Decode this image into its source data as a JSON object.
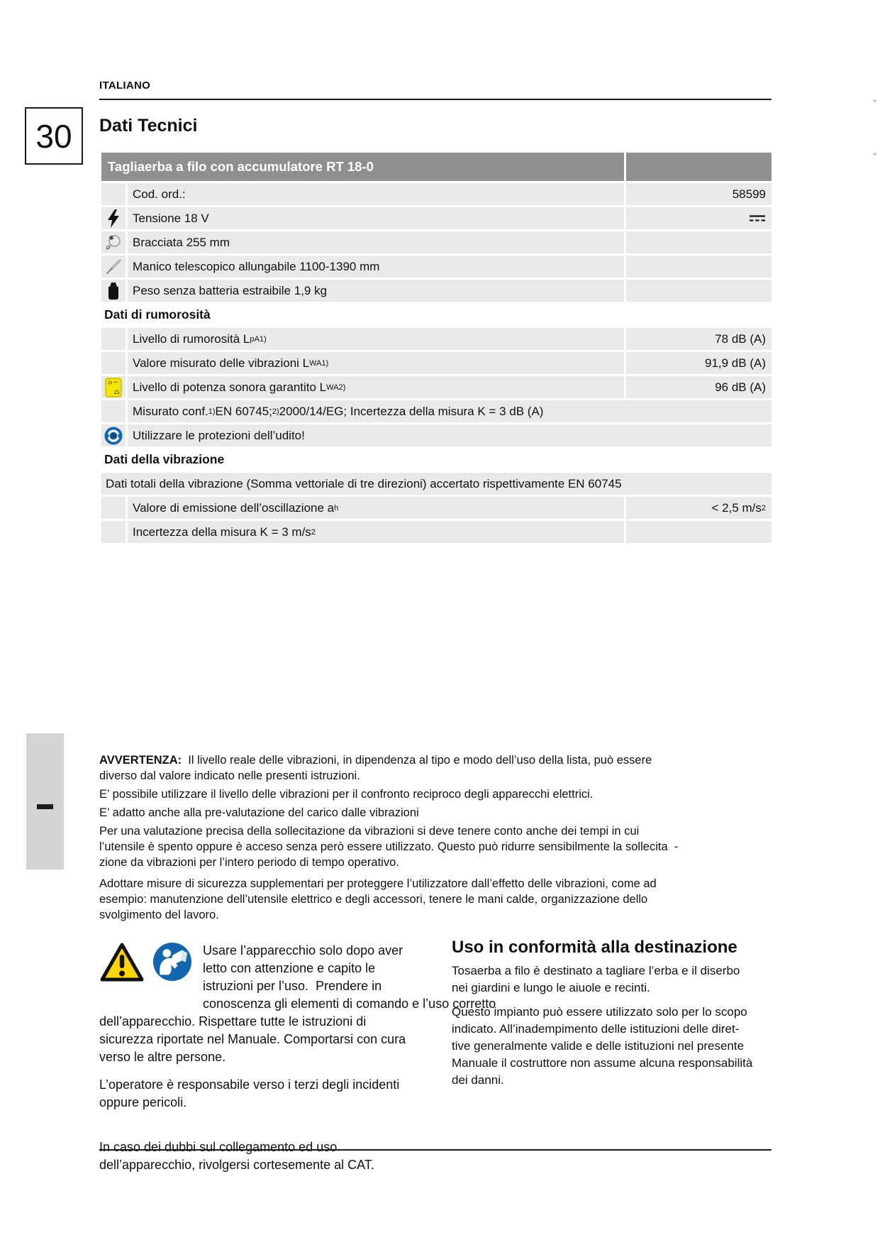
{
  "page": {
    "language_label": "ITALIANO",
    "number": "30",
    "title": "Dati Tecnici"
  },
  "table": {
    "header": {
      "title": "Tagliaerba a filo con accumulatore RT 18-0"
    },
    "rows": [
      {
        "type": "data",
        "icon": null,
        "label": [
          [
            "t",
            "Cod. ord.:"
          ]
        ],
        "value": [
          [
            "t",
            "58599"
          ]
        ]
      },
      {
        "type": "data",
        "icon": "lightning-icon",
        "label": [
          [
            "t",
            "Tensione 18 V"
          ]
        ],
        "value_symbol": "dc-symbol"
      },
      {
        "type": "data",
        "icon": "cutting-width-icon",
        "label": [
          [
            "t",
            "Bracciata 255 mm"
          ]
        ]
      },
      {
        "type": "data",
        "icon": "telescopic-handle-icon",
        "label": [
          [
            "t",
            "Manico telescopico allungabile 1100-1390 mm"
          ]
        ]
      },
      {
        "type": "data",
        "icon": "weight-icon",
        "label": [
          [
            "t",
            "Peso senza batteria estraibile 1,9 kg"
          ]
        ]
      },
      {
        "type": "section",
        "label": [
          [
            "t",
            "Dati di rumorosità"
          ]
        ]
      },
      {
        "type": "data",
        "icon": null,
        "label": [
          [
            "t",
            "Livello di rumorosità L"
          ],
          [
            "sub",
            "pA"
          ],
          [
            "sup",
            "1)"
          ]
        ],
        "value": [
          [
            "t",
            "78 dB (A)"
          ]
        ]
      },
      {
        "type": "data",
        "icon": null,
        "label": [
          [
            "t",
            "Valore misurato delle vibrazioni L"
          ],
          [
            "sub",
            "WA"
          ],
          [
            "sup",
            "1)"
          ]
        ],
        "value": [
          [
            "t",
            "91,9 dB (A)"
          ]
        ]
      },
      {
        "type": "data",
        "icon": "noise-label-icon",
        "label": [
          [
            "t",
            "Livello di potenza sonora garantito L"
          ],
          [
            "sub",
            "WA"
          ],
          [
            "sup",
            "2)"
          ]
        ],
        "value": [
          [
            "t",
            "96 dB (A)"
          ]
        ]
      },
      {
        "type": "span-indent",
        "icon": null,
        "label": [
          [
            "t",
            "Misurato conf. "
          ],
          [
            "sup",
            "1)"
          ],
          [
            "t",
            "EN 60745; "
          ],
          [
            "sup",
            "2)"
          ],
          [
            "t",
            " 2000/14/EG; Incertezza della misura K = 3 dB (A)"
          ]
        ]
      },
      {
        "type": "span-indent",
        "icon": "ear-protection-icon",
        "label": [
          [
            "t",
            "Utilizzare le protezioni dell’udito!"
          ]
        ]
      },
      {
        "type": "section",
        "label": [
          [
            "t",
            "Dati della vibrazione"
          ]
        ]
      },
      {
        "type": "span-flush",
        "label": [
          [
            "t",
            "Dati totali della vibrazione (Somma vettoriale di tre direzioni) accertato rispettivamente EN 60745"
          ]
        ]
      },
      {
        "type": "data",
        "icon": null,
        "label": [
          [
            "t",
            "Valore di emissione dell’oscillazione a"
          ],
          [
            "sub",
            "h"
          ]
        ],
        "value": [
          [
            "t",
            "< 2,5 m/s"
          ],
          [
            "sup2",
            "2"
          ]
        ]
      },
      {
        "type": "data",
        "icon": null,
        "label": [
          [
            "t",
            "Incertezza della misura K = 3 m/s"
          ],
          [
            "sup2",
            "2"
          ]
        ]
      }
    ]
  },
  "warning_block": {
    "lead": "AVVERTENZA:",
    "p1_rest": "  Il livello reale delle vibrazioni, in dipendenza al tipo e modo dell’uso della lista, può essere\ndiverso dal valore indicato nelle presenti istruzioni.",
    "p2": "E’ possibile utilizzare il livello delle vibrazioni per il confronto reciproco degli apparecchi elettrici.",
    "p3": "E’ adatto anche alla pre-valutazione del carico dalle vibrazioni",
    "p4": "Per una valutazione precisa della sollecitazione da vibrazioni si deve tenere conto anche dei tempi in cui\nl’utensile è spento oppure è acceso senza però essere utilizzato. Questo può ridurre sensibilmente la sollecita  -\nzione da vibrazioni per l’intero periodo di tempo operativo.",
    "p5": "Adottare misure di sicurezza supplementari per proteggere l’utilizzatore dall’effetto delle vibrazioni, come ad\nesempio: manutenzione dell’utensile elettrico e degli accessori, tenere le mani calde, organizzazione dello\nsvolgimento del lavoro."
  },
  "bottom_left": {
    "p1": "Usare l’apparecchio solo dopo aver\nletto con attenzione e capito le\nistruzioni per l’uso.  Prendere in\nconoscenza gli elementi di comando e l’uso corretto\ndell’apparecchio. Rispettare tutte le istruzioni di\nsicurezza riportate nel Manuale. Comportarsi con cura\nverso le altre persone.",
    "p2": "L’operatore è responsabile verso i terzi degli incidenti\noppure pericoli.",
    "p3": "In caso dei dubbi sul collegamento ed uso\ndell’apparecchio, rivolgersi cortesemente al CAT."
  },
  "bottom_right": {
    "heading": "Uso in conformità alla destinazione",
    "p1": "Tosaerba a filo è destinato a tagliare l’erba e il diserbo\nnei giardini e lungo le aiuole e recinti.",
    "p2": "Questo impianto può essere utilizzato solo per lo scopo\nindicato. All’inadempimento delle istituzioni delle diret-\ntive generalmente valide e delle istituzioni nel presente\nManuale il costruttore non assume alcuna responsabilità\ndei danni."
  },
  "colors": {
    "header-bg": "#8f8f8f",
    "row-bg": "#e9e9e9",
    "icon-blue": "#1266ad",
    "warning-yellow": "#ffd500",
    "noise-yellow": "#f7e400",
    "rule-dark": "#1a1a1a"
  }
}
